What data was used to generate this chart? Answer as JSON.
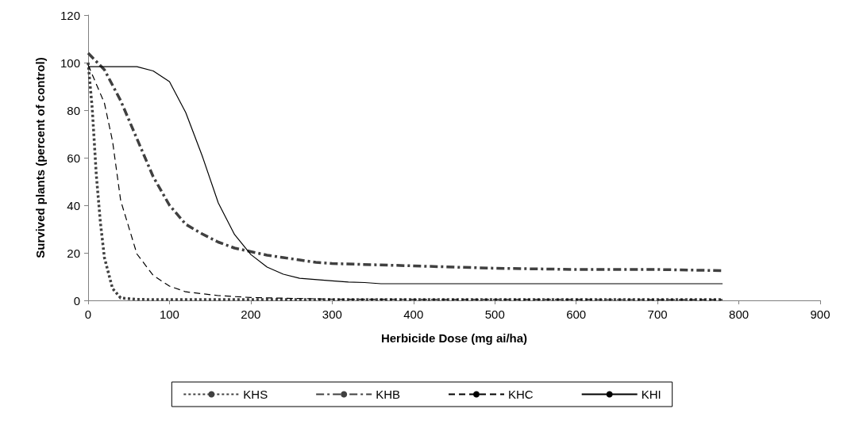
{
  "chart_data": {
    "type": "line",
    "xlabel": "Herbicide Dose (mg ai/ha)",
    "ylabel": "Survived plants (percent of control)",
    "xlim": [
      0,
      900
    ],
    "xticks": [
      0,
      100,
      200,
      300,
      400,
      500,
      600,
      700,
      800,
      900
    ],
    "ylim": [
      0,
      120
    ],
    "yticks": [
      0,
      20,
      40,
      60,
      80,
      100,
      120
    ],
    "grid": false,
    "legend": "bottom",
    "marker": "none",
    "series": [
      {
        "name": "KHS",
        "color": "#404040",
        "line_style": "dotted",
        "x": [
          0,
          5,
          10,
          15,
          20,
          30,
          40,
          60,
          100,
          200,
          400,
          780
        ],
        "values": [
          100,
          81,
          53,
          33,
          18,
          5,
          1,
          0.4,
          0.3,
          0.3,
          0.3,
          0.3
        ]
      },
      {
        "name": "KHB",
        "color": "#404040",
        "line_style": "dashdot",
        "x": [
          0,
          20,
          40,
          60,
          80,
          100,
          120,
          140,
          160,
          180,
          200,
          220,
          240,
          260,
          280,
          300,
          350,
          400,
          450,
          500,
          600,
          700,
          780
        ],
        "values": [
          104,
          97,
          84,
          68,
          52,
          40,
          32,
          28,
          24.5,
          22,
          20.5,
          19,
          18,
          17,
          16,
          15.5,
          15,
          14.5,
          14,
          13.5,
          13,
          13,
          12.5
        ]
      },
      {
        "name": "KHC",
        "color": "#000000",
        "line_style": "dashed",
        "x": [
          0,
          20,
          30,
          40,
          60,
          80,
          100,
          120,
          160,
          200,
          300,
          400,
          780
        ],
        "values": [
          99,
          83,
          67,
          42,
          19.5,
          10.5,
          6,
          3.6,
          2,
          1.2,
          0.5,
          0.4,
          0.3
        ]
      },
      {
        "name": "KHI",
        "color": "#000000",
        "line_style": "solid",
        "x": [
          0,
          60,
          80,
          100,
          120,
          140,
          160,
          180,
          200,
          220,
          240,
          260,
          300,
          320,
          340,
          360,
          780
        ],
        "values": [
          98.3,
          98.3,
          96.5,
          92,
          79,
          61,
          41,
          27.7,
          19.3,
          14,
          11,
          9.3,
          8.2,
          7.7,
          7.5,
          7,
          7
        ]
      }
    ]
  }
}
